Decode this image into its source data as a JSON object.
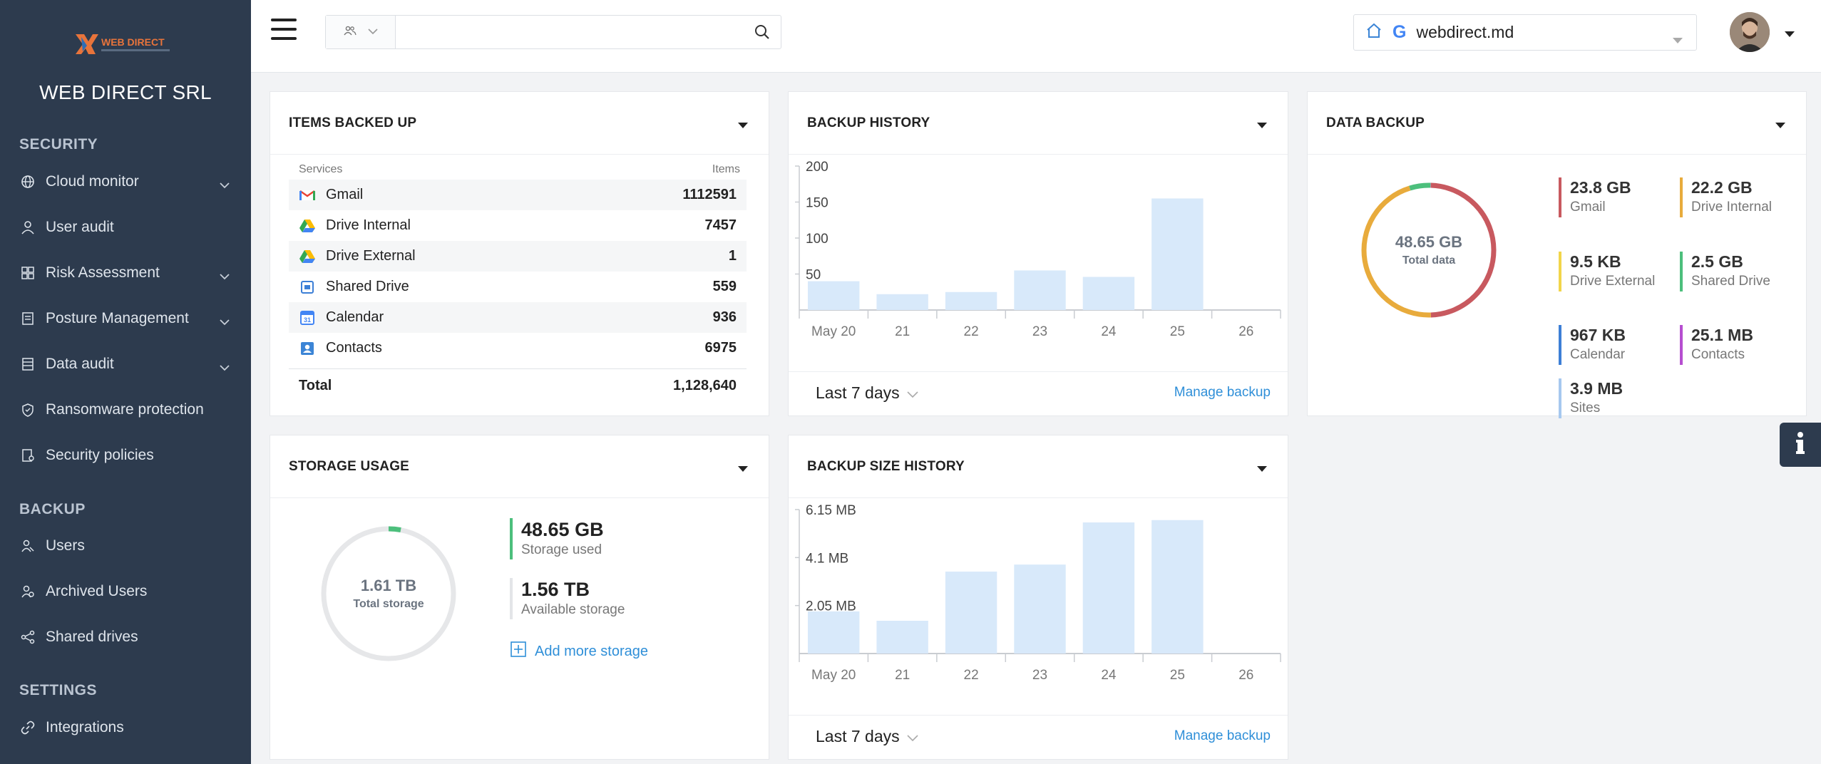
{
  "sidebar": {
    "logo_text": "WEB DIRECT",
    "company": "WEB DIRECT SRL",
    "sections": {
      "security": "SECURITY",
      "backup": "BACKUP",
      "settings": "SETTINGS"
    },
    "items": [
      {
        "label": "Cloud monitor",
        "icon": "globe-icon",
        "chevron": true
      },
      {
        "label": "User audit",
        "icon": "user-icon",
        "chevron": false
      },
      {
        "label": "Risk Assessment",
        "icon": "grid-icon",
        "chevron": true
      },
      {
        "label": "Posture Management",
        "icon": "document-icon",
        "chevron": true
      },
      {
        "label": "Data audit",
        "icon": "list-icon",
        "chevron": true
      },
      {
        "label": "Ransomware protection",
        "icon": "shield-icon",
        "chevron": false
      },
      {
        "label": "Security policies",
        "icon": "policy-icon",
        "chevron": false
      },
      {
        "label": "Users",
        "icon": "users-icon",
        "chevron": false
      },
      {
        "label": "Archived Users",
        "icon": "archived-users-icon",
        "chevron": false
      },
      {
        "label": "Shared drives",
        "icon": "share-icon",
        "chevron": false
      },
      {
        "label": "Integrations",
        "icon": "link-icon",
        "chevron": false
      }
    ]
  },
  "topbar": {
    "search_placeholder": "",
    "domain": "webdirect.md",
    "domain_g": "G"
  },
  "items_backed_up": {
    "title": "ITEMS BACKED UP",
    "col_services": "Services",
    "col_items": "Items",
    "rows": [
      {
        "service": "Gmail",
        "items": "1112591",
        "icon": "gmail-icon"
      },
      {
        "service": "Drive Internal",
        "items": "7457",
        "icon": "drive-icon"
      },
      {
        "service": "Drive External",
        "items": "1",
        "icon": "drive-icon"
      },
      {
        "service": "Shared Drive",
        "items": "559",
        "icon": "shared-drive-icon"
      },
      {
        "service": "Calendar",
        "items": "936",
        "icon": "calendar-icon"
      },
      {
        "service": "Contacts",
        "items": "6975",
        "icon": "contacts-icon"
      }
    ],
    "total_label": "Total",
    "total_value": "1,128,640"
  },
  "backup_history": {
    "title": "BACKUP HISTORY",
    "period": "Last 7 days",
    "manage": "Manage backup"
  },
  "data_backup": {
    "title": "DATA BACKUP",
    "center_value": "48.65 GB",
    "center_label": "Total data",
    "legend": [
      {
        "value": "23.8 GB",
        "name": "Gmail",
        "color": "#c8595f"
      },
      {
        "value": "22.2 GB",
        "name": "Drive Internal",
        "color": "#e8ab3c"
      },
      {
        "value": "9.5 KB",
        "name": "Drive External",
        "color": "#f2d54a"
      },
      {
        "value": "2.5 GB",
        "name": "Shared Drive",
        "color": "#4cbf7c"
      },
      {
        "value": "967 KB",
        "name": "Calendar",
        "color": "#3d7fd6"
      },
      {
        "value": "25.1 MB",
        "name": "Contacts",
        "color": "#b64ed0"
      },
      {
        "value": "3.9 MB",
        "name": "Sites",
        "color": "#a6c8ef"
      }
    ]
  },
  "storage_usage": {
    "title": "STORAGE USAGE",
    "center_value": "1.61 TB",
    "center_label": "Total storage",
    "used_value": "48.65 GB",
    "used_label": "Storage used",
    "available_value": "1.56 TB",
    "available_label": "Available storage",
    "add_more": "Add more storage",
    "used_fraction": 0.03
  },
  "backup_size_history": {
    "title": "BACKUP SIZE HISTORY",
    "period": "Last 7 days",
    "manage": "Manage backup"
  },
  "chart_data": [
    {
      "type": "bar",
      "title": "BACKUP HISTORY",
      "categories": [
        "May 20",
        "21",
        "22",
        "23",
        "24",
        "25",
        "26"
      ],
      "values": [
        40,
        22,
        25,
        55,
        46,
        155,
        0
      ],
      "ylim": [
        0,
        200
      ],
      "yticks": [
        "50",
        "100",
        "150",
        "200"
      ],
      "ytick_values": [
        50,
        100,
        150,
        200
      ],
      "bar_color": "#d8e9fa"
    },
    {
      "type": "bar",
      "title": "BACKUP SIZE HISTORY",
      "categories": [
        "May 20",
        "21",
        "22",
        "23",
        "24",
        "25",
        "26"
      ],
      "values": [
        1.8,
        1.4,
        3.5,
        3.8,
        5.6,
        5.7,
        0
      ],
      "ylim": [
        0,
        6.15
      ],
      "yticks": [
        "2.05 MB",
        "4.1 MB",
        "6.15 MB"
      ],
      "ytick_values": [
        2.05,
        4.1,
        6.15
      ],
      "bar_color": "#d8e9fa"
    }
  ]
}
